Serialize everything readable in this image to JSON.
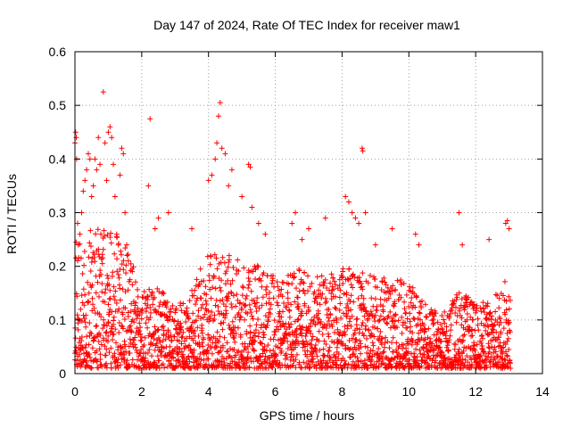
{
  "chart_data": {
    "type": "scatter",
    "title": "Day 147 of 2024, Rate Of TEC Index for receiver maw1",
    "xlabel": "GPS time / hours",
    "ylabel": "ROTI / TECUs",
    "xlim": [
      0,
      14
    ],
    "ylim": [
      0,
      0.6
    ],
    "xticks": [
      "0",
      "2",
      "4",
      "6",
      "8",
      "10",
      "12",
      "14"
    ],
    "yticks": [
      "0",
      "0.1",
      "0.2",
      "0.3",
      "0.4",
      "0.5",
      "0.6"
    ],
    "grid": true,
    "marker": "+",
    "color": "#ff0000",
    "x_extent_hours": [
      0,
      13.05
    ],
    "series": [
      {
        "values": [
          [
            0.0,
            0.43
          ],
          [
            0.02,
            0.45
          ],
          [
            0.04,
            0.44
          ],
          [
            0.05,
            0.4
          ],
          [
            0.08,
            0.28
          ],
          [
            0.1,
            0.24
          ],
          [
            0.15,
            0.26
          ],
          [
            0.2,
            0.3
          ],
          [
            0.25,
            0.34
          ],
          [
            0.3,
            0.36
          ],
          [
            0.35,
            0.38
          ],
          [
            0.4,
            0.41
          ],
          [
            0.45,
            0.4
          ],
          [
            0.5,
            0.33
          ],
          [
            0.55,
            0.35
          ],
          [
            0.6,
            0.4
          ],
          [
            0.65,
            0.38
          ],
          [
            0.7,
            0.44
          ],
          [
            0.75,
            0.39
          ],
          [
            0.85,
            0.525
          ],
          [
            0.9,
            0.43
          ],
          [
            0.95,
            0.36
          ],
          [
            1.0,
            0.45
          ],
          [
            1.05,
            0.46
          ],
          [
            1.1,
            0.44
          ],
          [
            1.15,
            0.39
          ],
          [
            1.2,
            0.33
          ],
          [
            1.25,
            0.26
          ],
          [
            1.3,
            0.24
          ],
          [
            1.35,
            0.37
          ],
          [
            1.4,
            0.42
          ],
          [
            1.45,
            0.41
          ],
          [
            1.5,
            0.3
          ],
          [
            1.55,
            0.24
          ],
          [
            1.6,
            0.21
          ],
          [
            2.2,
            0.35
          ],
          [
            2.25,
            0.475
          ],
          [
            2.4,
            0.27
          ],
          [
            2.5,
            0.29
          ],
          [
            2.8,
            0.3
          ],
          [
            3.5,
            0.27
          ],
          [
            4.0,
            0.36
          ],
          [
            4.1,
            0.37
          ],
          [
            4.2,
            0.4
          ],
          [
            4.25,
            0.43
          ],
          [
            4.3,
            0.48
          ],
          [
            4.35,
            0.505
          ],
          [
            4.4,
            0.42
          ],
          [
            4.5,
            0.41
          ],
          [
            4.6,
            0.35
          ],
          [
            4.7,
            0.38
          ],
          [
            5.0,
            0.33
          ],
          [
            5.2,
            0.39
          ],
          [
            5.25,
            0.385
          ],
          [
            5.3,
            0.31
          ],
          [
            5.5,
            0.28
          ],
          [
            5.7,
            0.26
          ],
          [
            6.5,
            0.28
          ],
          [
            6.6,
            0.3
          ],
          [
            6.8,
            0.25
          ],
          [
            7.0,
            0.27
          ],
          [
            7.5,
            0.29
          ],
          [
            8.1,
            0.33
          ],
          [
            8.2,
            0.32
          ],
          [
            8.3,
            0.3
          ],
          [
            8.4,
            0.29
          ],
          [
            8.5,
            0.28
          ],
          [
            8.6,
            0.42
          ],
          [
            8.62,
            0.415
          ],
          [
            8.7,
            0.3
          ],
          [
            9.0,
            0.24
          ],
          [
            9.5,
            0.27
          ],
          [
            10.2,
            0.26
          ],
          [
            10.3,
            0.24
          ],
          [
            11.5,
            0.3
          ],
          [
            11.6,
            0.24
          ],
          [
            12.4,
            0.25
          ],
          [
            12.9,
            0.28
          ],
          [
            12.95,
            0.285
          ],
          [
            13.0,
            0.27
          ]
        ]
      }
    ]
  }
}
